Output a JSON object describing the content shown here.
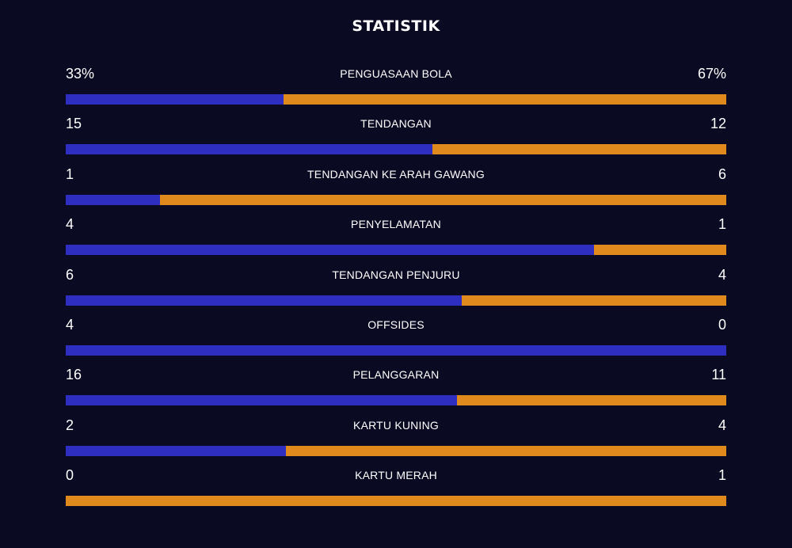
{
  "title": "STATISTIK",
  "colors": {
    "home": "#2e2ec0",
    "away": "#e08a1e",
    "background": "#0a0a22"
  },
  "stats": [
    {
      "label": "PENGUASAAN BOLA",
      "home": "33%",
      "away": "67%",
      "home_value": 33,
      "away_value": 67
    },
    {
      "label": "TENDANGAN",
      "home": "15",
      "away": "12",
      "home_value": 15,
      "away_value": 12
    },
    {
      "label": "TENDANGAN KE ARAH GAWANG",
      "home": "1",
      "away": "6",
      "home_value": 1,
      "away_value": 6
    },
    {
      "label": "PENYELAMATAN",
      "home": "4",
      "away": "1",
      "home_value": 4,
      "away_value": 1
    },
    {
      "label": "TENDANGAN PENJURU",
      "home": "6",
      "away": "4",
      "home_value": 6,
      "away_value": 4
    },
    {
      "label": "OFFSIDES",
      "home": "4",
      "away": "0",
      "home_value": 4,
      "away_value": 0
    },
    {
      "label": "PELANGGARAN",
      "home": "16",
      "away": "11",
      "home_value": 16,
      "away_value": 11
    },
    {
      "label": "KARTU KUNING",
      "home": "2",
      "away": "4",
      "home_value": 2,
      "away_value": 4
    },
    {
      "label": "KARTU MERAH",
      "home": "0",
      "away": "1",
      "home_value": 0,
      "away_value": 1
    }
  ]
}
